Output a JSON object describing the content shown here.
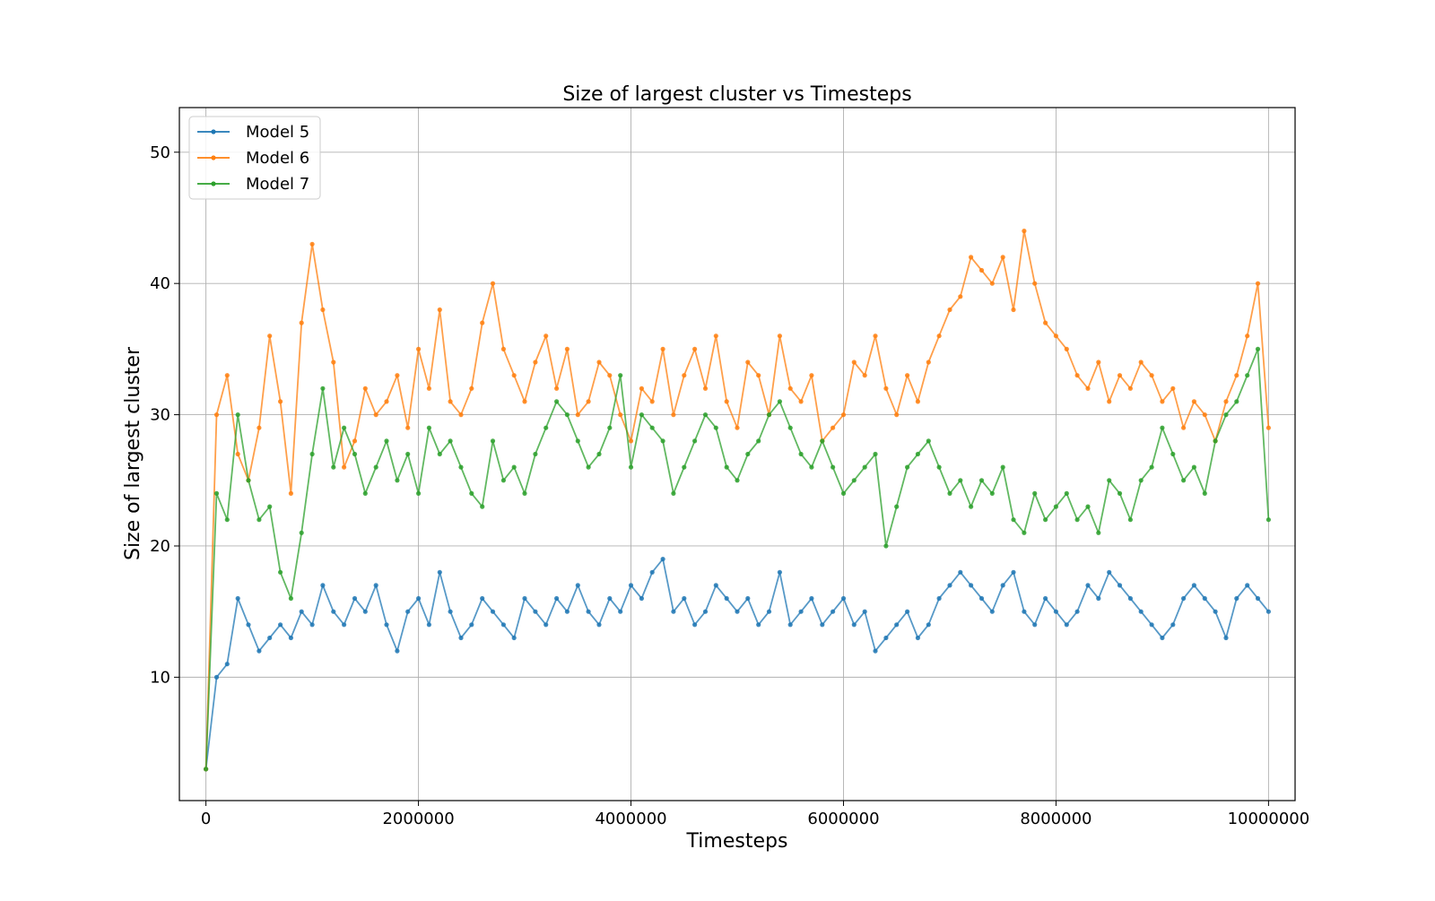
{
  "chart_data": {
    "type": "line",
    "title": "Size of largest cluster vs Timesteps",
    "xlabel": "Timesteps",
    "ylabel": "Size of largest cluster",
    "xlim": [
      -250000,
      10250000
    ],
    "ylim": [
      0.6,
      53.4
    ],
    "xticks": [
      0,
      2000000,
      4000000,
      6000000,
      8000000,
      10000000
    ],
    "xtick_labels": [
      "0",
      "2000000",
      "4000000",
      "6000000",
      "8000000",
      "10000000"
    ],
    "yticks": [
      10,
      20,
      30,
      40,
      50
    ],
    "ytick_labels": [
      "10",
      "20",
      "30",
      "40",
      "50"
    ],
    "grid": true,
    "legend_position": "top-left",
    "series": [
      {
        "name": "Model 5",
        "color": "#1f77b4",
        "x": [
          0,
          100000,
          200000,
          300000,
          400000,
          500000,
          600000,
          700000,
          800000,
          900000,
          1000000,
          1100000,
          1200000,
          1300000,
          1400000,
          1500000,
          1600000,
          1700000,
          1800000,
          1900000,
          2000000,
          2100000,
          2200000,
          2300000,
          2400000,
          2500000,
          2600000,
          2700000,
          2800000,
          2900000,
          3000000,
          3100000,
          3200000,
          3300000,
          3400000,
          3500000,
          3600000,
          3700000,
          3800000,
          3900000,
          4000000,
          4100000,
          4200000,
          4300000,
          4400000,
          4500000,
          4600000,
          4700000,
          4800000,
          4900000,
          5000000,
          5100000,
          5200000,
          5300000,
          5400000,
          5500000,
          5600000,
          5700000,
          5800000,
          5900000,
          6000000,
          6100000,
          6200000,
          6300000,
          6400000,
          6500000,
          6600000,
          6700000,
          6800000,
          6900000,
          7000000,
          7100000,
          7200000,
          7300000,
          7400000,
          7500000,
          7600000,
          7700000,
          7800000,
          7900000,
          8000000,
          8100000,
          8200000,
          8300000,
          8400000,
          8500000,
          8600000,
          8700000,
          8800000,
          8900000,
          9000000,
          9100000,
          9200000,
          9300000,
          9400000,
          9500000,
          9600000,
          9700000,
          9800000,
          9900000,
          10000000
        ],
        "y": [
          3,
          10,
          11,
          16,
          14,
          12,
          13,
          14,
          13,
          15,
          14,
          17,
          15,
          14,
          16,
          15,
          17,
          14,
          12,
          15,
          16,
          14,
          18,
          15,
          13,
          14,
          16,
          15,
          14,
          13,
          16,
          15,
          14,
          16,
          15,
          17,
          15,
          14,
          16,
          15,
          17,
          16,
          18,
          19,
          15,
          16,
          14,
          15,
          17,
          16,
          15,
          16,
          14,
          15,
          18,
          14,
          15,
          16,
          14,
          15,
          16,
          14,
          15,
          12,
          13,
          14,
          15,
          13,
          14,
          16,
          17,
          18,
          17,
          16,
          15,
          17,
          18,
          15,
          14,
          16,
          15,
          14,
          15,
          17,
          16,
          18,
          17,
          16,
          15,
          14,
          13,
          14,
          16,
          17,
          16,
          15,
          13,
          16,
          17,
          16,
          15
        ]
      },
      {
        "name": "Model 6",
        "color": "#ff7f0e",
        "x": [
          0,
          100000,
          200000,
          300000,
          400000,
          500000,
          600000,
          700000,
          800000,
          900000,
          1000000,
          1100000,
          1200000,
          1300000,
          1400000,
          1500000,
          1600000,
          1700000,
          1800000,
          1900000,
          2000000,
          2100000,
          2200000,
          2300000,
          2400000,
          2500000,
          2600000,
          2700000,
          2800000,
          2900000,
          3000000,
          3100000,
          3200000,
          3300000,
          3400000,
          3500000,
          3600000,
          3700000,
          3800000,
          3900000,
          4000000,
          4100000,
          4200000,
          4300000,
          4400000,
          4500000,
          4600000,
          4700000,
          4800000,
          4900000,
          5000000,
          5100000,
          5200000,
          5300000,
          5400000,
          5500000,
          5600000,
          5700000,
          5800000,
          5900000,
          6000000,
          6100000,
          6200000,
          6300000,
          6400000,
          6500000,
          6600000,
          6700000,
          6800000,
          6900000,
          7000000,
          7100000,
          7200000,
          7300000,
          7400000,
          7500000,
          7600000,
          7700000,
          7800000,
          7900000,
          8000000,
          8100000,
          8200000,
          8300000,
          8400000,
          8500000,
          8600000,
          8700000,
          8800000,
          8900000,
          9000000,
          9100000,
          9200000,
          9300000,
          9400000,
          9500000,
          9600000,
          9700000,
          9800000,
          9900000,
          10000000
        ],
        "y": [
          3,
          30,
          33,
          27,
          25,
          29,
          36,
          31,
          24,
          37,
          43,
          38,
          34,
          26,
          28,
          32,
          30,
          31,
          33,
          29,
          35,
          32,
          38,
          31,
          30,
          32,
          37,
          40,
          35,
          33,
          31,
          34,
          36,
          32,
          35,
          30,
          31,
          34,
          33,
          30,
          28,
          32,
          31,
          35,
          30,
          33,
          35,
          32,
          36,
          31,
          29,
          34,
          33,
          30,
          36,
          32,
          31,
          33,
          28,
          29,
          30,
          34,
          33,
          36,
          32,
          30,
          33,
          31,
          34,
          36,
          38,
          39,
          42,
          41,
          40,
          42,
          38,
          44,
          40,
          37,
          36,
          35,
          33,
          32,
          34,
          31,
          33,
          32,
          34,
          33,
          31,
          32,
          29,
          31,
          30,
          28,
          31,
          33,
          36,
          40,
          29
        ]
      },
      {
        "name": "Model 7",
        "color": "#2ca02c",
        "x": [
          0,
          100000,
          200000,
          300000,
          400000,
          500000,
          600000,
          700000,
          800000,
          900000,
          1000000,
          1100000,
          1200000,
          1300000,
          1400000,
          1500000,
          1600000,
          1700000,
          1800000,
          1900000,
          2000000,
          2100000,
          2200000,
          2300000,
          2400000,
          2500000,
          2600000,
          2700000,
          2800000,
          2900000,
          3000000,
          3100000,
          3200000,
          3300000,
          3400000,
          3500000,
          3600000,
          3700000,
          3800000,
          3900000,
          4000000,
          4100000,
          4200000,
          4300000,
          4400000,
          4500000,
          4600000,
          4700000,
          4800000,
          4900000,
          5000000,
          5100000,
          5200000,
          5300000,
          5400000,
          5500000,
          5600000,
          5700000,
          5800000,
          5900000,
          6000000,
          6100000,
          6200000,
          6300000,
          6400000,
          6500000,
          6600000,
          6700000,
          6800000,
          6900000,
          7000000,
          7100000,
          7200000,
          7300000,
          7400000,
          7500000,
          7600000,
          7700000,
          7800000,
          7900000,
          8000000,
          8100000,
          8200000,
          8300000,
          8400000,
          8500000,
          8600000,
          8700000,
          8800000,
          8900000,
          9000000,
          9100000,
          9200000,
          9300000,
          9400000,
          9500000,
          9600000,
          9700000,
          9800000,
          9900000,
          10000000
        ],
        "y": [
          3,
          24,
          22,
          30,
          25,
          22,
          23,
          18,
          16,
          21,
          27,
          32,
          26,
          29,
          27,
          24,
          26,
          28,
          25,
          27,
          24,
          29,
          27,
          28,
          26,
          24,
          23,
          28,
          25,
          26,
          24,
          27,
          29,
          31,
          30,
          28,
          26,
          27,
          29,
          33,
          26,
          30,
          29,
          28,
          24,
          26,
          28,
          30,
          29,
          26,
          25,
          27,
          28,
          30,
          31,
          29,
          27,
          26,
          28,
          26,
          24,
          25,
          26,
          27,
          20,
          23,
          26,
          27,
          28,
          26,
          24,
          25,
          23,
          25,
          24,
          26,
          22,
          21,
          24,
          22,
          23,
          24,
          22,
          23,
          21,
          25,
          24,
          22,
          25,
          26,
          29,
          27,
          25,
          26,
          24,
          28,
          30,
          31,
          33,
          35,
          22
        ]
      }
    ]
  }
}
